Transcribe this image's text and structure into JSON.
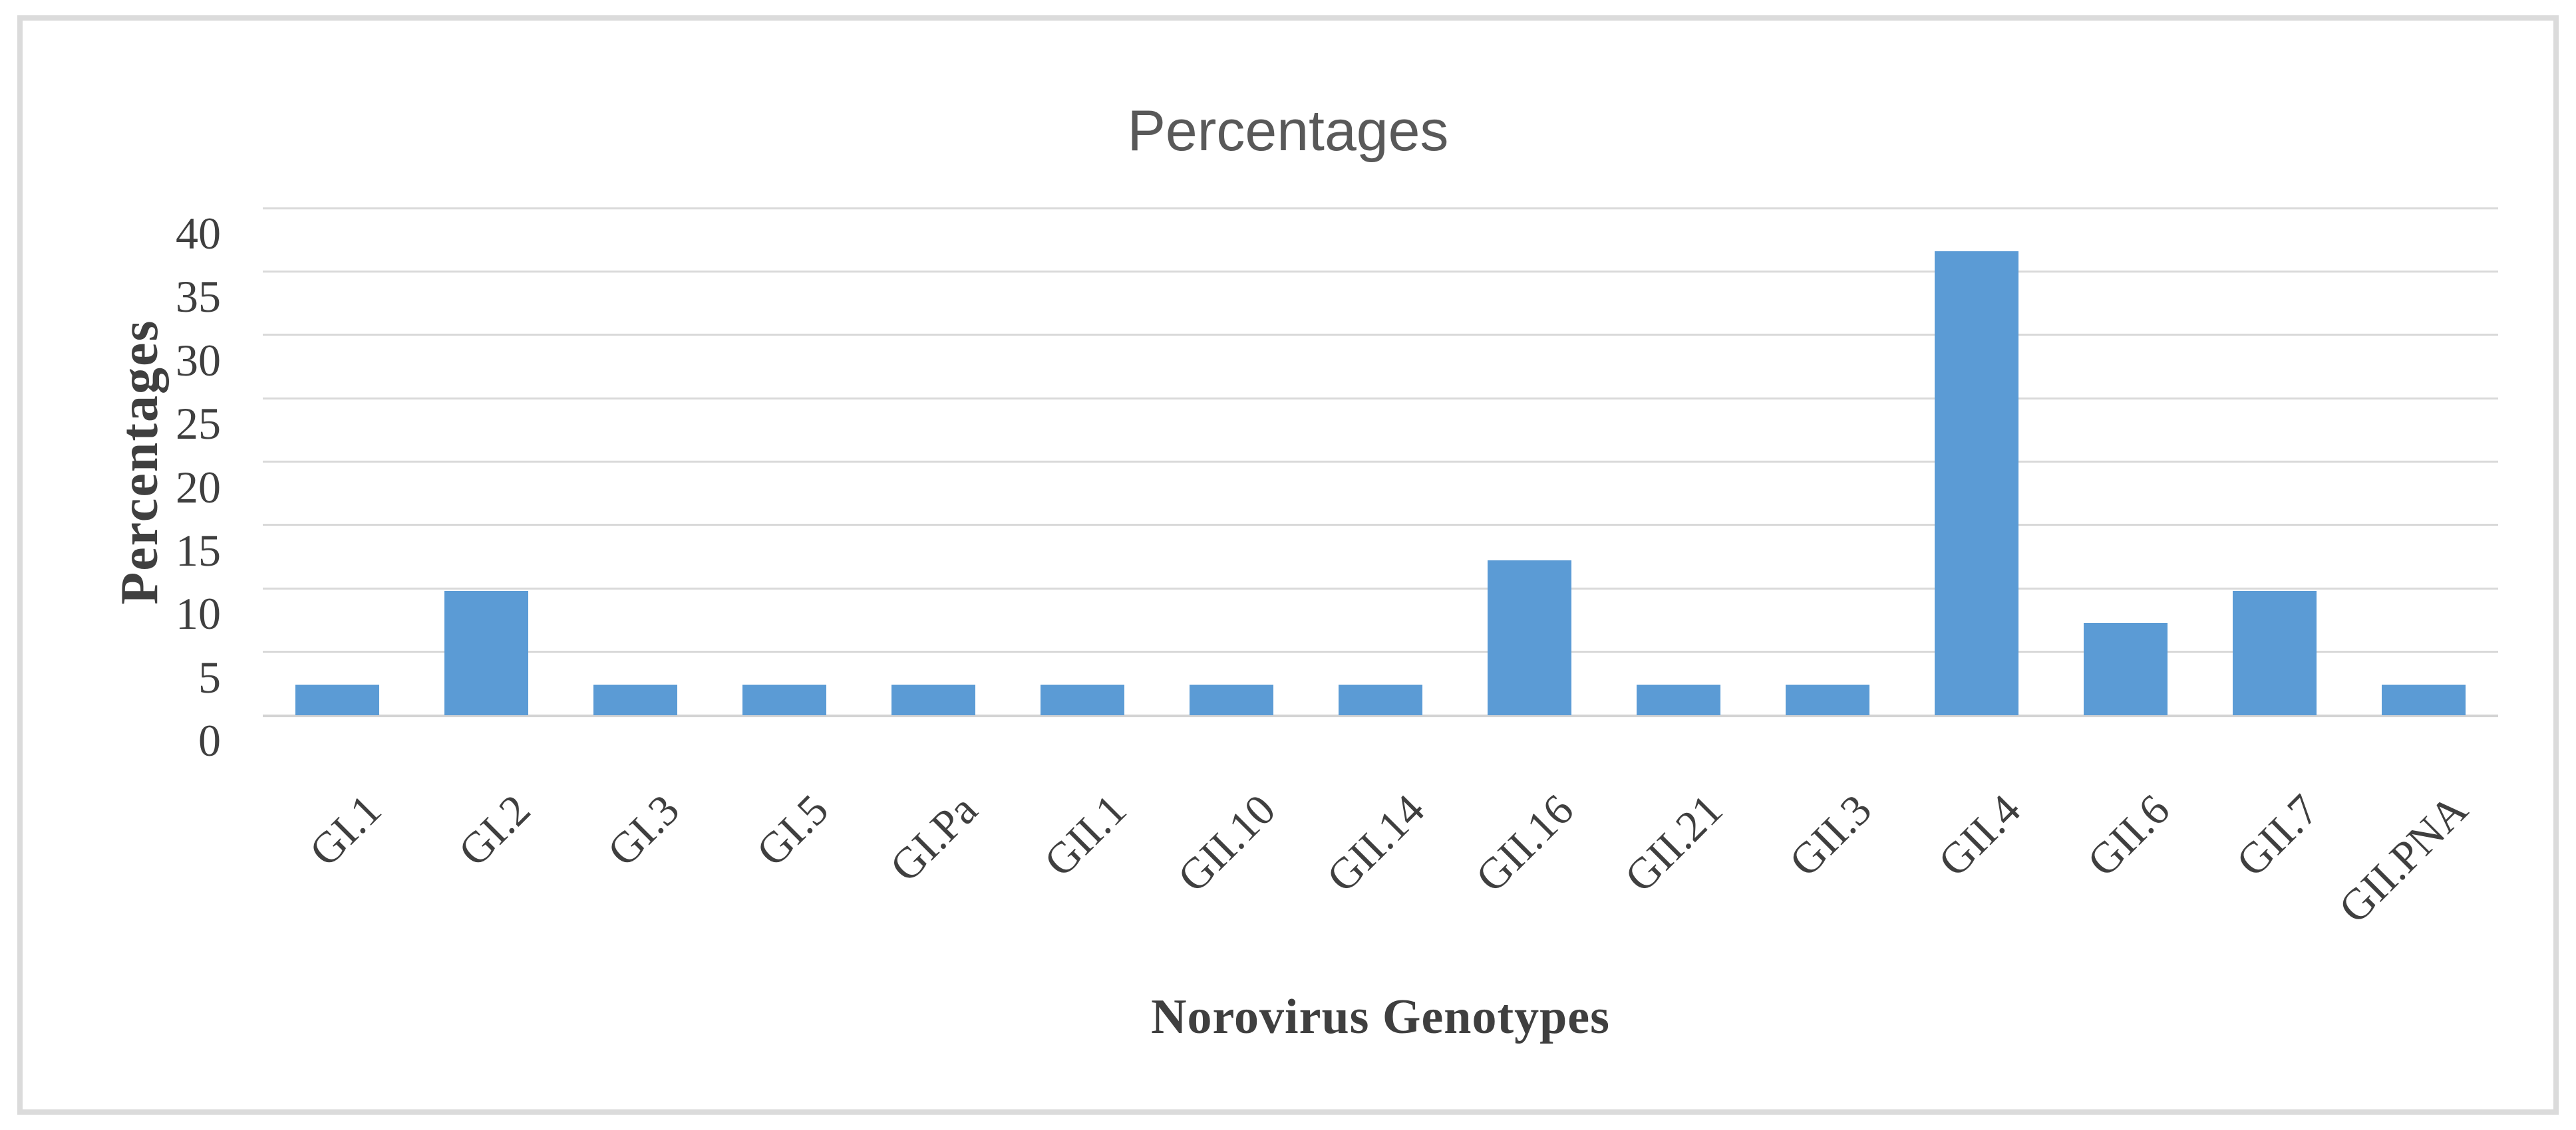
{
  "chart_data": {
    "type": "bar",
    "title": "Percentages",
    "xlabel": "Norovirus Genotypes",
    "ylabel": "Percentages",
    "categories": [
      "GI.1",
      "GI.2",
      "GI.3",
      "GI.5",
      "GI.Pa",
      "GII.1",
      "GII.10",
      "GII.14",
      "GII.16",
      "GII.21",
      "GII.3",
      "GII.4",
      "GII.6",
      "GII.7",
      "GII.PNA"
    ],
    "values": [
      2.4,
      9.8,
      2.4,
      2.4,
      2.4,
      2.4,
      2.4,
      2.4,
      12.2,
      2.4,
      2.4,
      36.6,
      7.3,
      9.8,
      2.4
    ],
    "yticks": [
      0,
      5,
      10,
      15,
      20,
      25,
      30,
      35,
      40
    ],
    "ylim": [
      0,
      40
    ],
    "grid": true,
    "legend": false,
    "bar_color": "#5B9BD5",
    "gridline_color": "#D9D9D9",
    "border_color": "#DBDBDB",
    "title_color": "#595959",
    "axis_text_color": "#3F3F3F",
    "category_label_rotation_deg": -45
  }
}
